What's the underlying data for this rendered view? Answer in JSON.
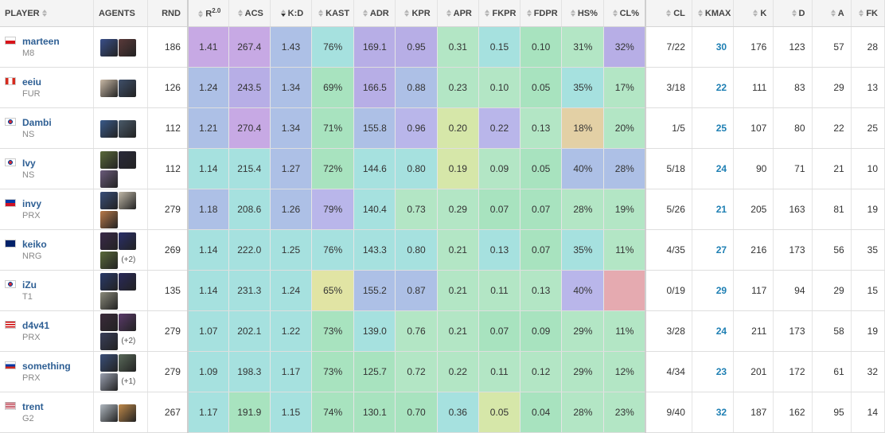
{
  "headers": {
    "player": "PLAYER",
    "agents": "AGENTS",
    "rnd": "RND",
    "r": "R",
    "r_sup": "2.0",
    "acs": "ACS",
    "kd": "K:D",
    "kast": "KAST",
    "adr": "ADR",
    "kpr": "KPR",
    "apr": "APR",
    "fkpr": "FKPR",
    "fdpr": "FDPR",
    "hs": "HS%",
    "cl_pct": "CL%",
    "cl": "CL",
    "kmax": "KMAX",
    "k": "K",
    "d": "D",
    "a": "A",
    "fk": "FK"
  },
  "rows": [
    {
      "name": "marteen",
      "team": "M8",
      "flag": "cz",
      "agents": [
        "#3a4f8a",
        "#5a3a3a"
      ],
      "more": "",
      "rnd": "186",
      "r": "1.41",
      "acs": "267.4",
      "kd": "1.43",
      "kast": "76%",
      "adr": "169.1",
      "kpr": "0.95",
      "apr": "0.31",
      "fkpr": "0.15",
      "fdpr": "0.10",
      "hs": "31%",
      "clp": "32%",
      "cl": "7/22",
      "kmax": "30",
      "k": "176",
      "d": "123",
      "a": "57",
      "fk": "28",
      "colors": [
        "c-purple",
        "c-purple",
        "c-blue",
        "c-cyan",
        "c-lav",
        "c-lav",
        "c-mint",
        "c-cyan",
        "c-green",
        "c-mint",
        "c-lav"
      ]
    },
    {
      "name": "eeiu",
      "team": "FUR",
      "flag": "ca",
      "agents": [
        "#c9b9a6",
        "#3f4f6a"
      ],
      "more": "",
      "rnd": "126",
      "r": "1.24",
      "acs": "243.5",
      "kd": "1.34",
      "kast": "69%",
      "adr": "166.5",
      "kpr": "0.88",
      "apr": "0.23",
      "fkpr": "0.10",
      "fdpr": "0.05",
      "hs": "35%",
      "clp": "17%",
      "cl": "3/18",
      "kmax": "22",
      "k": "111",
      "d": "83",
      "a": "29",
      "fk": "13",
      "colors": [
        "c-blue",
        "c-lav",
        "c-blue",
        "c-green",
        "c-lav",
        "c-blue",
        "c-mint",
        "c-mint",
        "c-green",
        "c-cyan",
        "c-mint"
      ]
    },
    {
      "name": "Dambi",
      "team": "NS",
      "flag": "kr",
      "agents": [
        "#3a5a8a",
        "#4a5a6a"
      ],
      "more": "",
      "rnd": "112",
      "r": "1.21",
      "acs": "270.4",
      "kd": "1.34",
      "kast": "71%",
      "adr": "155.8",
      "kpr": "0.96",
      "apr": "0.20",
      "fkpr": "0.22",
      "fdpr": "0.13",
      "hs": "18%",
      "clp": "20%",
      "cl": "1/5",
      "kmax": "25",
      "k": "107",
      "d": "80",
      "a": "22",
      "fk": "25",
      "colors": [
        "c-blue",
        "c-purple",
        "c-blue",
        "c-green",
        "c-blue",
        "c-periw",
        "c-lime",
        "c-periw",
        "c-mint",
        "c-tan",
        "c-mint"
      ]
    },
    {
      "name": "Ivy",
      "team": "NS",
      "flag": "kr",
      "agents": [
        "#5a6a3a",
        "#2a2a3a",
        "#6a5a7a"
      ],
      "more": "",
      "rnd": "112",
      "r": "1.14",
      "acs": "215.4",
      "kd": "1.27",
      "kast": "72%",
      "adr": "144.6",
      "kpr": "0.80",
      "apr": "0.19",
      "fkpr": "0.09",
      "fdpr": "0.05",
      "hs": "40%",
      "clp": "28%",
      "cl": "5/18",
      "kmax": "24",
      "k": "90",
      "d": "71",
      "a": "21",
      "fk": "10",
      "colors": [
        "c-cyan",
        "c-cyan",
        "c-blue",
        "c-green",
        "c-cyan",
        "c-cyan",
        "c-lime",
        "c-mint",
        "c-green",
        "c-blue",
        "c-blue"
      ]
    },
    {
      "name": "invy",
      "team": "PRX",
      "flag": "ph",
      "agents": [
        "#3a4f7a",
        "#c0b8a8",
        "#b87a4a"
      ],
      "more": "",
      "rnd": "279",
      "r": "1.18",
      "acs": "208.6",
      "kd": "1.26",
      "kast": "79%",
      "adr": "140.4",
      "kpr": "0.73",
      "apr": "0.29",
      "fkpr": "0.07",
      "fdpr": "0.07",
      "hs": "28%",
      "clp": "19%",
      "cl": "5/26",
      "kmax": "21",
      "k": "205",
      "d": "163",
      "a": "81",
      "fk": "19",
      "colors": [
        "c-blue",
        "c-cyan",
        "c-blue",
        "c-periw",
        "c-cyan",
        "c-mint",
        "c-mint",
        "c-green",
        "c-green",
        "c-mint",
        "c-mint"
      ]
    },
    {
      "name": "keiko",
      "team": "NRG",
      "flag": "gb",
      "agents": [
        "#3a2a4a",
        "#2a2f6a",
        "#5a6a3a"
      ],
      "more": "(+2)",
      "rnd": "269",
      "r": "1.14",
      "acs": "222.0",
      "kd": "1.25",
      "kast": "76%",
      "adr": "143.3",
      "kpr": "0.80",
      "apr": "0.21",
      "fkpr": "0.13",
      "fdpr": "0.07",
      "hs": "35%",
      "clp": "11%",
      "cl": "4/35",
      "kmax": "27",
      "k": "216",
      "d": "173",
      "a": "56",
      "fk": "35",
      "colors": [
        "c-cyan",
        "c-cyan",
        "c-cyan",
        "c-cyan",
        "c-cyan",
        "c-cyan",
        "c-mint",
        "c-cyan",
        "c-green",
        "c-cyan",
        "c-mint"
      ]
    },
    {
      "name": "iZu",
      "team": "T1",
      "flag": "kr",
      "agents": [
        "#2a3a6a",
        "#2a2a5a",
        "#8a8a7a"
      ],
      "more": "",
      "rnd": "135",
      "r": "1.14",
      "acs": "231.3",
      "kd": "1.24",
      "kast": "65%",
      "adr": "155.2",
      "kpr": "0.87",
      "apr": "0.21",
      "fkpr": "0.11",
      "fdpr": "0.13",
      "hs": "40%",
      "clp": "",
      "cl": "0/19",
      "kmax": "29",
      "k": "117",
      "d": "94",
      "a": "29",
      "fk": "15",
      "colors": [
        "c-cyan",
        "c-cyan",
        "c-cyan",
        "c-yellow",
        "c-blue",
        "c-blue",
        "c-mint",
        "c-mint",
        "c-mint",
        "c-periw",
        "c-pink"
      ]
    },
    {
      "name": "d4v41",
      "team": "PRX",
      "flag": "my",
      "agents": [
        "#3a2a3a",
        "#5a3a6a",
        "#3a3f5a"
      ],
      "more": "(+2)",
      "rnd": "279",
      "r": "1.07",
      "acs": "202.1",
      "kd": "1.22",
      "kast": "73%",
      "adr": "139.0",
      "kpr": "0.76",
      "apr": "0.21",
      "fkpr": "0.07",
      "fdpr": "0.09",
      "hs": "29%",
      "clp": "11%",
      "cl": "3/28",
      "kmax": "24",
      "k": "211",
      "d": "173",
      "a": "58",
      "fk": "19",
      "colors": [
        "c-cyan",
        "c-cyan",
        "c-cyan",
        "c-green",
        "c-cyan",
        "c-mint",
        "c-mint",
        "c-green",
        "c-green",
        "c-mint",
        "c-mint"
      ]
    },
    {
      "name": "something",
      "team": "PRX",
      "flag": "ru",
      "agents": [
        "#3a4f7a",
        "#5a6a5a",
        "#9aa0b0"
      ],
      "more": "(+1)",
      "rnd": "279",
      "r": "1.09",
      "acs": "198.3",
      "kd": "1.17",
      "kast": "73%",
      "adr": "125.7",
      "kpr": "0.72",
      "apr": "0.22",
      "fkpr": "0.11",
      "fdpr": "0.12",
      "hs": "29%",
      "clp": "12%",
      "cl": "4/34",
      "kmax": "23",
      "k": "201",
      "d": "172",
      "a": "61",
      "fk": "32",
      "colors": [
        "c-cyan",
        "c-cyan",
        "c-cyan",
        "c-green",
        "c-green",
        "c-mint",
        "c-mint",
        "c-mint",
        "c-mint",
        "c-mint",
        "c-mint"
      ]
    },
    {
      "name": "trent",
      "team": "G2",
      "flag": "us",
      "agents": [
        "#b0b8c0",
        "#c08a4a"
      ],
      "more": "",
      "rnd": "267",
      "r": "1.17",
      "acs": "191.9",
      "kd": "1.15",
      "kast": "74%",
      "adr": "130.1",
      "kpr": "0.70",
      "apr": "0.36",
      "fkpr": "0.05",
      "fdpr": "0.04",
      "hs": "28%",
      "clp": "23%",
      "cl": "9/40",
      "kmax": "32",
      "k": "187",
      "d": "162",
      "a": "95",
      "fk": "14",
      "colors": [
        "c-cyan",
        "c-green",
        "c-cyan",
        "c-green",
        "c-green",
        "c-green",
        "c-cyan",
        "c-lime",
        "c-green",
        "c-mint",
        "c-mint"
      ]
    }
  ]
}
